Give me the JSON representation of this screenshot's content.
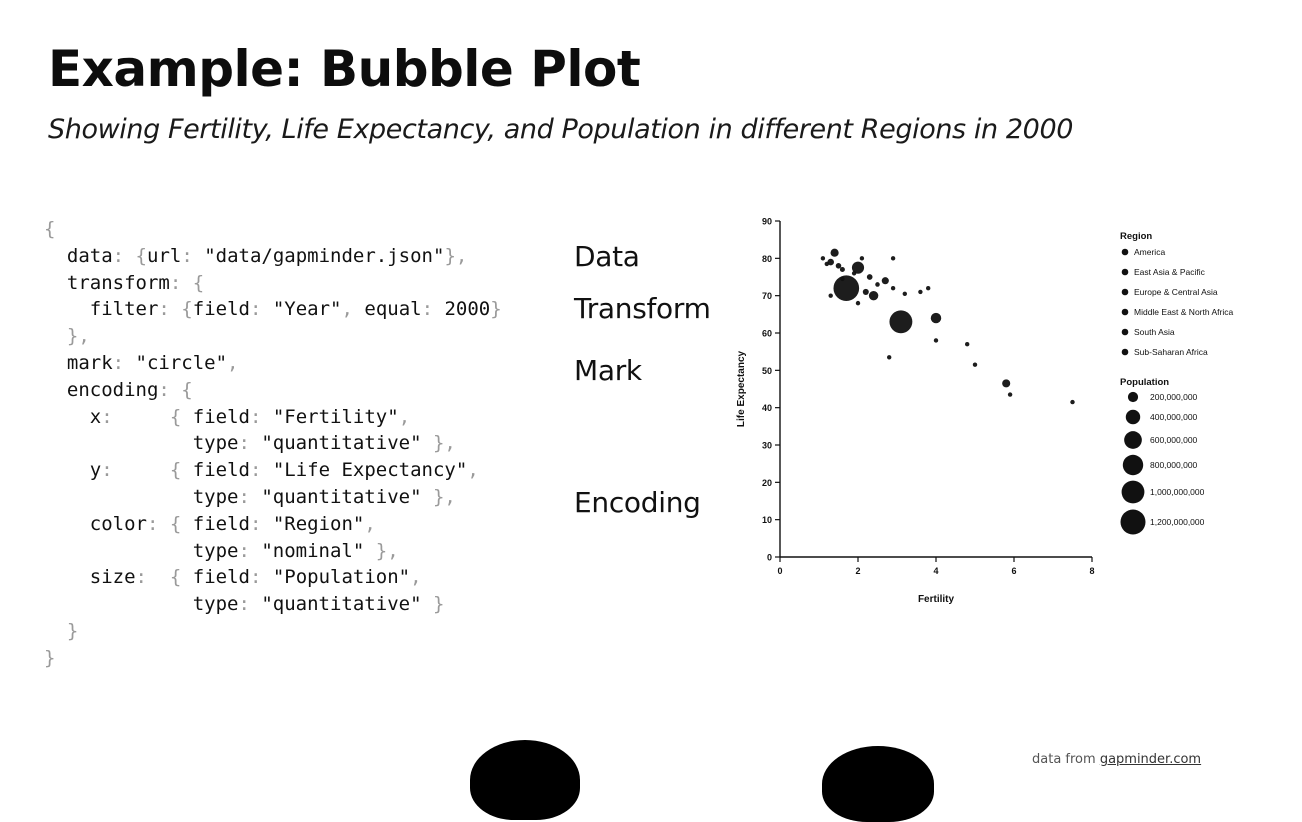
{
  "slide": {
    "title": "Example: Bubble Plot",
    "subtitle": "Showing Fertility, Life Expectancy, and Population in different Regions in 2000"
  },
  "code": {
    "lines": [
      "{",
      "  data: {url: \"data/gapminder.json\"},",
      "  transform: {",
      "    filter: {field: \"Year\", equal: 2000}",
      "  },",
      "  mark: \"circle\",",
      "  encoding: {",
      "    x:     { field: \"Fertility\",",
      "             type: \"quantitative\" },",
      "    y:     { field: \"Life Expectancy\",",
      "             type: \"quantitative\" },",
      "    color: { field: \"Region\",",
      "             type: \"nominal\" },",
      "    size:  { field: \"Population\",",
      "             type: \"quantitative\" }",
      "  }",
      "}"
    ]
  },
  "annotations": {
    "data": "Data",
    "transform": "Transform",
    "mark": "Mark",
    "encoding": "Encoding"
  },
  "footer": {
    "source_prefix": "data from ",
    "source_link": "gapminder.com"
  },
  "chart_data": {
    "type": "scatter",
    "xlabel": "Fertility",
    "ylabel": "Life Expectancy",
    "xlim": [
      0,
      8
    ],
    "ylim": [
      0,
      90
    ],
    "xticks": [
      0,
      2,
      4,
      6,
      8
    ],
    "yticks": [
      0,
      10,
      20,
      30,
      40,
      50,
      60,
      70,
      80,
      90
    ],
    "grid": false,
    "legend_position": "right",
    "color": "#111111",
    "legend_region": {
      "title": "Region",
      "entries": [
        "America",
        "East Asia & Pacific",
        "Europe & Central Asia",
        "Middle East & North Africa",
        "South Asia",
        "Sub-Saharan Africa"
      ]
    },
    "legend_size": {
      "title": "Population",
      "entries": [
        {
          "label": "200,000,000",
          "value": 200000000
        },
        {
          "label": "400,000,000",
          "value": 400000000
        },
        {
          "label": "600,000,000",
          "value": 600000000
        },
        {
          "label": "800,000,000",
          "value": 800000000
        },
        {
          "label": "1,000,000,000",
          "value": 1000000000
        },
        {
          "label": "1,200,000,000",
          "value": 1200000000
        }
      ]
    },
    "points": [
      {
        "x": 1.7,
        "y": 72,
        "size": 1262000000
      },
      {
        "x": 3.1,
        "y": 63,
        "size": 1007000000
      },
      {
        "x": 1.4,
        "y": 81.5,
        "size": 127000000
      },
      {
        "x": 1.3,
        "y": 79,
        "size": 82000000
      },
      {
        "x": 1.5,
        "y": 78,
        "size": 59000000
      },
      {
        "x": 1.6,
        "y": 77,
        "size": 48000000
      },
      {
        "x": 2.0,
        "y": 77.5,
        "size": 283000000
      },
      {
        "x": 2.4,
        "y": 70,
        "size": 170000000
      },
      {
        "x": 2.3,
        "y": 75,
        "size": 62000000
      },
      {
        "x": 2.7,
        "y": 74,
        "size": 98000000
      },
      {
        "x": 2.5,
        "y": 73,
        "size": 40000000
      },
      {
        "x": 2.2,
        "y": 71,
        "size": 70000000
      },
      {
        "x": 1.9,
        "y": 76,
        "size": 12000000
      },
      {
        "x": 1.1,
        "y": 80,
        "size": 8000000
      },
      {
        "x": 1.2,
        "y": 78.5,
        "size": 38000000
      },
      {
        "x": 1.3,
        "y": 70,
        "size": 10000000
      },
      {
        "x": 1.6,
        "y": 74.5,
        "size": 22000000
      },
      {
        "x": 2.0,
        "y": 68,
        "size": 30000000
      },
      {
        "x": 2.9,
        "y": 72,
        "size": 25000000
      },
      {
        "x": 3.2,
        "y": 70.5,
        "size": 28000000
      },
      {
        "x": 3.6,
        "y": 71,
        "size": 15000000
      },
      {
        "x": 3.8,
        "y": 72,
        "size": 5000000
      },
      {
        "x": 2.9,
        "y": 80,
        "size": 6000000
      },
      {
        "x": 2.1,
        "y": 80,
        "size": 9000000
      },
      {
        "x": 4.0,
        "y": 64,
        "size": 210000000
      },
      {
        "x": 4.0,
        "y": 58,
        "size": 10000000
      },
      {
        "x": 4.8,
        "y": 57,
        "size": 20000000
      },
      {
        "x": 5.0,
        "y": 51.5,
        "size": 23000000
      },
      {
        "x": 2.8,
        "y": 53.5,
        "size": 25000000
      },
      {
        "x": 5.8,
        "y": 46.5,
        "size": 125000000
      },
      {
        "x": 5.9,
        "y": 43.5,
        "size": 12000000
      },
      {
        "x": 7.5,
        "y": 41.5,
        "size": 16000000
      }
    ]
  }
}
